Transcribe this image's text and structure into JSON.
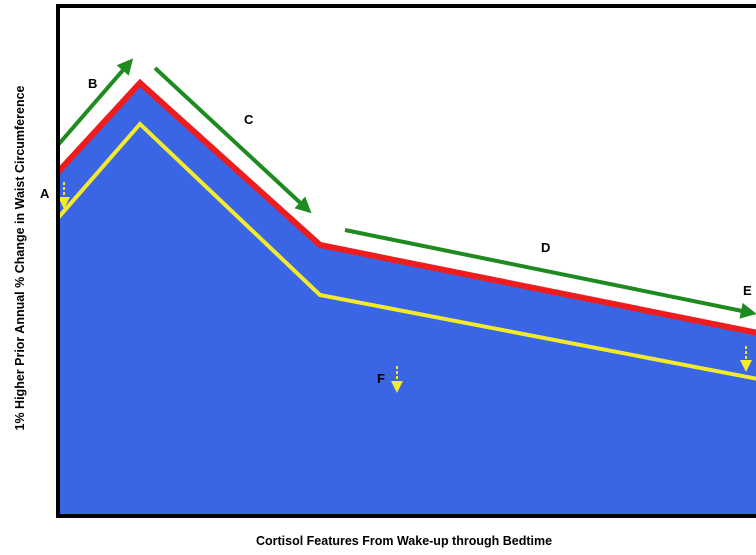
{
  "axes": {
    "xlabel": "Cortisol Features From Wake-up through Bedtime",
    "ylabel": "1% Higher Prior Annual % Change in Waist Circumference"
  },
  "labels": {
    "a": "A",
    "b": "B",
    "c": "C",
    "d": "D",
    "e": "E",
    "f": "F"
  },
  "colors": {
    "fill": "#3a66e6",
    "upper_line": "#ee1c1c",
    "lower_line": "#f2ea2a",
    "arrows": "#1f8a1f",
    "frame": "#000000"
  }
}
